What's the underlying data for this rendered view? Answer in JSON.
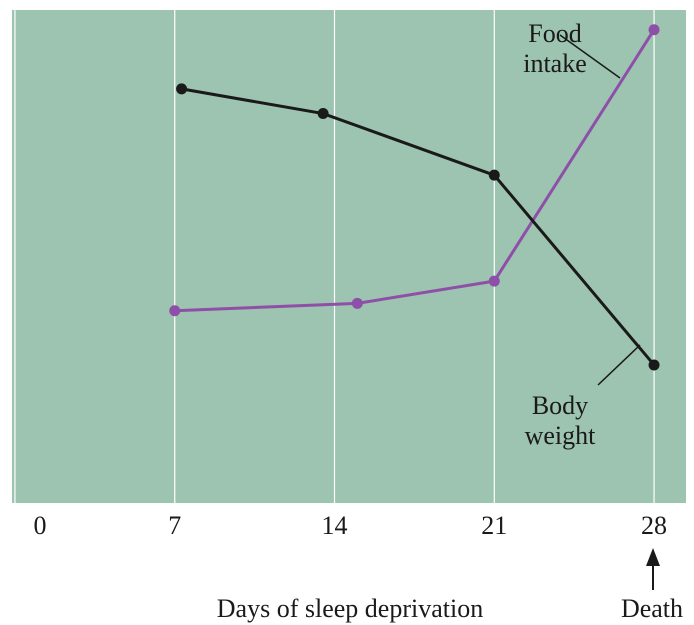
{
  "chart_data": {
    "type": "line",
    "x_label": "Days of sleep deprivation",
    "annotation": "Death",
    "xlim": [
      -0.13,
      29.4
    ],
    "ylim": [
      0,
      100
    ],
    "xticks": [
      0,
      7,
      14,
      21,
      28
    ],
    "grid": true,
    "background": "#9dc4b0",
    "series": [
      {
        "name": "Food intake",
        "color": "#8e4fa8",
        "x": [
          7,
          15,
          21,
          28
        ],
        "values": [
          39,
          40.5,
          45,
          96
        ]
      },
      {
        "name": "Body weight",
        "color": "#1a1a1a",
        "x": [
          7.3,
          13.5,
          21,
          28
        ],
        "values": [
          84,
          79,
          66.5,
          28
        ]
      }
    ]
  }
}
